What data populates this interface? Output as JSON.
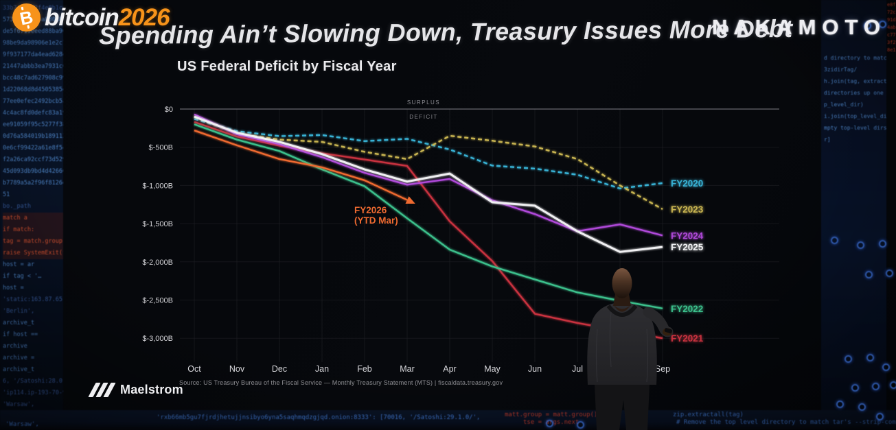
{
  "header": {
    "conference_brand": "bitcoin",
    "conference_year": "2026",
    "bitcoin_symbol": "B",
    "venue_logo": "NAKAMOTO"
  },
  "slide": {
    "title": "Spending Ain’t Slowing Down, Treasury Issues More Debt",
    "subtitle": "US Federal Deficit by Fiscal Year",
    "source": "Source: US Treasury Bureau of the Fiscal Service — Monthly Treasury Statement (MTS) | fiscaldata.treasury.gov",
    "brand_name": "Maelstrom"
  },
  "chart_data": {
    "type": "line",
    "title": "US Federal Deficit by Fiscal Year",
    "xlabel": "",
    "ylabel": "",
    "x": [
      "Oct",
      "Nov",
      "Dec",
      "Jan",
      "Feb",
      "Mar",
      "Apr",
      "May",
      "Jun",
      "Jul",
      "Aug",
      "Sep"
    ],
    "y_ticks": [
      {
        "label": "$0",
        "value": 0
      },
      {
        "label": "$-500B",
        "value": -500
      },
      {
        "label": "$-1,000B",
        "value": -1000
      },
      {
        "label": "$-1,500B",
        "value": -1500
      },
      {
        "label": "$-2,000B",
        "value": -2000
      },
      {
        "label": "$-2,500B",
        "value": -2500
      },
      {
        "label": "$-3,000B",
        "value": -3000
      }
    ],
    "ylim": [
      -3250,
      120
    ],
    "grid": true,
    "legend_position": "right-of-line-ends",
    "zero_line_annotations": {
      "above": "SURPLUS",
      "below": "DEFICIT"
    },
    "series": [
      {
        "name": "FY2020",
        "color": "#38b3d6",
        "dash": true,
        "values": [
          -130,
          -290,
          -355,
          -340,
          -420,
          -390,
          -530,
          -740,
          -780,
          -860,
          -1040,
          -970
        ]
      },
      {
        "name": "FY2021",
        "color": "#c9323f",
        "dash": false,
        "values": [
          -170,
          -360,
          -480,
          -580,
          -660,
          -745,
          -1470,
          -1990,
          -2680,
          -2800,
          -2900,
          -3000
        ]
      },
      {
        "name": "FY2022",
        "color": "#3cc08c",
        "dash": false,
        "values": [
          -200,
          -400,
          -550,
          -790,
          -1010,
          -1430,
          -1840,
          -2060,
          -2230,
          -2400,
          -2510,
          -2610
        ]
      },
      {
        "name": "FY2023",
        "color": "#c9b551",
        "dash": true,
        "values": [
          -100,
          -320,
          -400,
          -430,
          -560,
          -655,
          -350,
          -415,
          -490,
          -655,
          -1000,
          -1310
        ]
      },
      {
        "name": "FY2024",
        "color": "#b049da",
        "dash": false,
        "values": [
          -70,
          -330,
          -460,
          -630,
          -835,
          -990,
          -915,
          -1195,
          -1375,
          -1600,
          -1510,
          -1655
        ]
      },
      {
        "name": "FY2025",
        "color": "#f0f0f2",
        "dash": false,
        "values": [
          -100,
          -310,
          -430,
          -590,
          -790,
          -950,
          -845,
          -1220,
          -1265,
          -1600,
          -1870,
          -1805
        ]
      },
      {
        "name": "FY2026",
        "color": "#ef6a30",
        "dash": false,
        "arrow": true,
        "label_lines": [
          "FY2026",
          "(YTD Mar)"
        ],
        "values": [
          -280,
          -475,
          -655,
          -763,
          -933,
          -1190
        ]
      }
    ]
  },
  "background": {
    "left_code_lines": [
      {
        "t": "33b7c0a9d2f4e8b1c6",
        "c": "dim"
      },
      {
        "t": "5734fa6abcba88048075",
        "c": "blue"
      },
      {
        "t": "de5f6719eeed88ba90c0e",
        "c": "blue"
      },
      {
        "t": "98be9da98906e1e2c7eb",
        "c": "blue"
      },
      {
        "t": "9f937177da4ead628e3",
        "c": "blue"
      },
      {
        "t": "21447abbb3ea7931c689",
        "c": "blue"
      },
      {
        "t": "bcc48c7ad627908c9968",
        "c": "blue"
      },
      {
        "t": "1d22068d8d4505385dfda",
        "c": "blue"
      },
      {
        "t": "77ee0efec2492bcb5af6",
        "c": "blue"
      },
      {
        "t": "4c4ac8fd0defc83a19ed5",
        "c": "blue"
      },
      {
        "t": "ee91059f95c5277f38f4",
        "c": "blue"
      },
      {
        "t": "0d76a584019b1891135c",
        "c": "blue"
      },
      {
        "t": "0e6cf99422a61e8f5e0a7",
        "c": "blue"
      },
      {
        "t": "f2a26ca92ccf73d529608",
        "c": "blue"
      },
      {
        "t": "45d093db9bd4d42666c",
        "c": "blue"
      },
      {
        "t": "b7789a5a2f96f8126dcc2",
        "c": "blue"
      },
      {
        "t": "51",
        "c": "blue"
      },
      {
        "t": "bo._path",
        "c": "dim"
      },
      {
        "t": "match a",
        "c": "hot"
      },
      {
        "t": "if match:",
        "c": "hot"
      },
      {
        "t": "tag = match.group(1)",
        "c": "hot"
      },
      {
        "t": "raise SystemExit(f'no')",
        "c": "hot"
      },
      {
        "t": "host = ar",
        "c": "blue"
      },
      {
        "t": "if tag < '…",
        "c": "blue"
      },
      {
        "t": "host =",
        "c": "blue"
      },
      {
        "t": "'static:163.87.65.178",
        "c": "dim"
      },
      {
        "t": "'Berlin',",
        "c": "dim"
      },
      {
        "t": "archive_t",
        "c": "blue"
      },
      {
        "t": "if host ==",
        "c": "blue"
      },
      {
        "t": "archive",
        "c": "blue"
      },
      {
        "t": "archive =",
        "c": "blue"
      },
      {
        "t": "archive_t",
        "c": "blue"
      },
      {
        "t": "6, '/Satoshi:28.0.0/',",
        "c": "dim"
      },
      {
        "t": "'ip114.ip-193-70-94",
        "c": "dim"
      },
      {
        "t": "'Warsaw',",
        "c": "dim"
      }
    ],
    "right_code_lines": [
      "d directory to match or s",
      "3zidirTag/",
      "h.join(tag, extracted_item",
      "directories up one level",
      "p_level_dir)",
      "i.join(top_level_dir, item)",
      "mpty top-level dirs p",
      "r]"
    ],
    "right_edge_lines": [
      "e8f",
      "72c",
      "91d",
      "4ab",
      "c77",
      "3f2",
      "8e1"
    ],
    "bottom_bar": {
      "far_left_blue": "'Warsaw',",
      "center_blue": "'rxb66mb5gu7fjrdjhetujjnsibyo6yna5saqhmqdzgjqd.onion:8333': [70016, '/Satoshi:29.1.0/',",
      "right_red_1": "matt.group = matt.group()",
      "right_red_2": "tse = args.next",
      "right_blue_1": "zip.extractall(tag)",
      "right_blue_2": "# Remove the top level directory to match tar's --strip-components=1"
    }
  },
  "colors": {
    "bitcoin_orange": "#f7931a",
    "stage_background": "#05070b",
    "fy2020": "#38b3d6",
    "fy2021": "#c9323f",
    "fy2022": "#3cc08c",
    "fy2023": "#c9b551",
    "fy2024": "#b049da",
    "fy2025": "#f0f0f2",
    "fy2026": "#ef6a30"
  }
}
